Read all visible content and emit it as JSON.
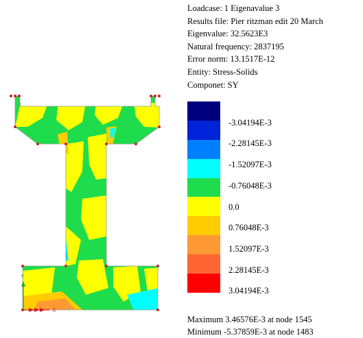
{
  "info": {
    "loadcase": "Loadcase: 1 Eigenavalue 3",
    "results_file": "Results file: Pier ritzman edit 20 March",
    "eigenvalue": "Eigenvalue: 32.5623E3",
    "natural_frequency": "Natural frequency: 2837195",
    "error_norm": "Error norm: 13.1517E-12",
    "entity": "Entity: Stress-Solids",
    "component": "Componet: SY"
  },
  "legend": {
    "band_colors": [
      "#00007f",
      "#0022d8",
      "#0080ff",
      "#00ffff",
      "#1fdc4c",
      "#ffff00",
      "#ffcc00",
      "#ff9933",
      "#ff6633",
      "#ff0000"
    ],
    "labels": [
      "-3.04194E-3",
      "-2.28145E-3",
      "-1.52097E-3",
      "-0.76048E-3",
      "0.0",
      "0.76048E-3",
      "1.52097E-3",
      "2.28145E-3",
      "3.04194E-3"
    ]
  },
  "footer": {
    "maximum": "Maximum 3.46576E-3 at node 1545",
    "minimum": "Minimum -5.37859E-3 at node 1483"
  },
  "axes": {
    "x_label": "X",
    "y_label": "Y"
  },
  "colors": {
    "green": "#1fdc4c",
    "yellow": "#ffff00",
    "orange": "#ffcc00",
    "orange_dark": "#ff9933",
    "cyan": "#00ffff",
    "blue": "#0080ff",
    "node": "#cc2222"
  }
}
